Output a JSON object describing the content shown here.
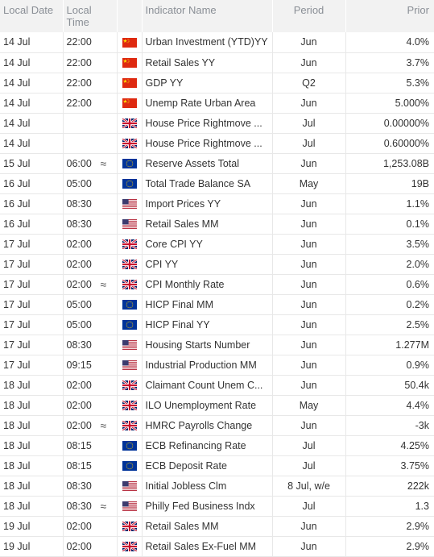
{
  "columns": {
    "local_date": "Local Date",
    "local_time": "Local Time",
    "indicator": "Indicator Name",
    "period": "Period",
    "prior": "Prior"
  },
  "rows": [
    {
      "date": "14 Jul",
      "time": "22:00",
      "wave": "",
      "flag": "china-flag-icon",
      "name": "Urban Investment (YTD)YY",
      "period": "Jun",
      "prior": "4.0%"
    },
    {
      "date": "14 Jul",
      "time": "22:00",
      "wave": "",
      "flag": "china-flag-icon",
      "name": "Retail Sales YY",
      "period": "Jun",
      "prior": "3.7%"
    },
    {
      "date": "14 Jul",
      "time": "22:00",
      "wave": "",
      "flag": "china-flag-icon",
      "name": "GDP YY",
      "period": "Q2",
      "prior": "5.3%"
    },
    {
      "date": "14 Jul",
      "time": "22:00",
      "wave": "",
      "flag": "china-flag-icon",
      "name": "Unemp Rate Urban Area",
      "period": "Jun",
      "prior": "5.000%"
    },
    {
      "date": "14 Jul",
      "time": "",
      "wave": "",
      "flag": "uk-flag-icon",
      "name": "House Price Rightmove ...",
      "period": "Jul",
      "prior": "0.00000%"
    },
    {
      "date": "14 Jul",
      "time": "",
      "wave": "",
      "flag": "uk-flag-icon",
      "name": "House Price Rightmove ...",
      "period": "Jul",
      "prior": "0.60000%"
    },
    {
      "date": "15 Jul",
      "time": "06:00",
      "wave": "≈",
      "flag": "eu-flag-icon",
      "name": "Reserve Assets Total",
      "period": "Jun",
      "prior": "1,253.08B"
    },
    {
      "date": "16 Jul",
      "time": "05:00",
      "wave": "",
      "flag": "eu-flag-icon",
      "name": "Total Trade Balance SA",
      "period": "May",
      "prior": "19B"
    },
    {
      "date": "16 Jul",
      "time": "08:30",
      "wave": "",
      "flag": "us-flag-icon",
      "name": "Import Prices YY",
      "period": "Jun",
      "prior": "1.1%"
    },
    {
      "date": "16 Jul",
      "time": "08:30",
      "wave": "",
      "flag": "us-flag-icon",
      "name": "Retail Sales MM",
      "period": "Jun",
      "prior": "0.1%"
    },
    {
      "date": "17 Jul",
      "time": "02:00",
      "wave": "",
      "flag": "uk-flag-icon",
      "name": "Core CPI YY",
      "period": "Jun",
      "prior": "3.5%"
    },
    {
      "date": "17 Jul",
      "time": "02:00",
      "wave": "",
      "flag": "uk-flag-icon",
      "name": "CPI YY",
      "period": "Jun",
      "prior": "2.0%"
    },
    {
      "date": "17 Jul",
      "time": "02:00",
      "wave": "≈",
      "flag": "uk-flag-icon",
      "name": "CPI Monthly Rate",
      "period": "Jun",
      "prior": "0.6%"
    },
    {
      "date": "17 Jul",
      "time": "05:00",
      "wave": "",
      "flag": "eu-flag-icon",
      "name": "HICP Final MM",
      "period": "Jun",
      "prior": "0.2%"
    },
    {
      "date": "17 Jul",
      "time": "05:00",
      "wave": "",
      "flag": "eu-flag-icon",
      "name": "HICP Final YY",
      "period": "Jun",
      "prior": "2.5%"
    },
    {
      "date": "17 Jul",
      "time": "08:30",
      "wave": "",
      "flag": "us-flag-icon",
      "name": "Housing Starts Number",
      "period": "Jun",
      "prior": "1.277M"
    },
    {
      "date": "17 Jul",
      "time": "09:15",
      "wave": "",
      "flag": "us-flag-icon",
      "name": "Industrial Production MM",
      "period": "Jun",
      "prior": "0.9%"
    },
    {
      "date": "18 Jul",
      "time": "02:00",
      "wave": "",
      "flag": "uk-flag-icon",
      "name": "Claimant Count Unem C...",
      "period": "Jun",
      "prior": "50.4k"
    },
    {
      "date": "18 Jul",
      "time": "02:00",
      "wave": "",
      "flag": "uk-flag-icon",
      "name": "ILO Unemployment Rate",
      "period": "May",
      "prior": "4.4%"
    },
    {
      "date": "18 Jul",
      "time": "02:00",
      "wave": "≈",
      "flag": "uk-flag-icon",
      "name": "HMRC Payrolls Change",
      "period": "Jun",
      "prior": "-3k"
    },
    {
      "date": "18 Jul",
      "time": "08:15",
      "wave": "",
      "flag": "eu-flag-icon",
      "name": "ECB Refinancing Rate",
      "period": "Jul",
      "prior": "4.25%"
    },
    {
      "date": "18 Jul",
      "time": "08:15",
      "wave": "",
      "flag": "eu-flag-icon",
      "name": "ECB Deposit Rate",
      "period": "Jul",
      "prior": "3.75%"
    },
    {
      "date": "18 Jul",
      "time": "08:30",
      "wave": "",
      "flag": "us-flag-icon",
      "name": "Initial Jobless Clm",
      "period": "8 Jul, w/e",
      "prior": "222k"
    },
    {
      "date": "18 Jul",
      "time": "08:30",
      "wave": "≈",
      "flag": "us-flag-icon",
      "name": "Philly Fed Business Indx",
      "period": "Jul",
      "prior": "1.3"
    },
    {
      "date": "19 Jul",
      "time": "02:00",
      "wave": "",
      "flag": "uk-flag-icon",
      "name": "Retail Sales MM",
      "period": "Jun",
      "prior": "2.9%"
    },
    {
      "date": "19 Jul",
      "time": "02:00",
      "wave": "",
      "flag": "uk-flag-icon",
      "name": "Retail Sales Ex-Fuel MM",
      "period": "Jun",
      "prior": "2.9%"
    }
  ]
}
